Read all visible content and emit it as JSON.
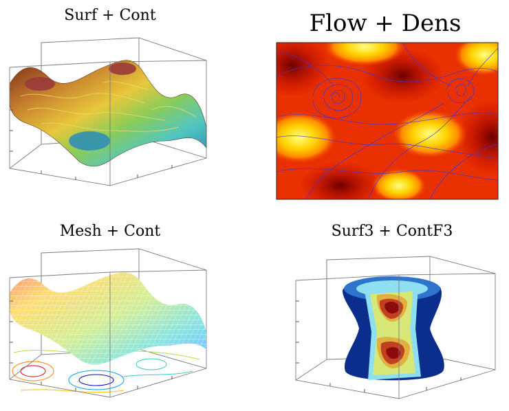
{
  "figure": {
    "panels": [
      {
        "title": "Surf + Cont"
      },
      {
        "title": "Flow + Dens"
      },
      {
        "title": "Mesh + Cont"
      },
      {
        "title": "Surf3 + ContF3"
      }
    ]
  },
  "chart_data": [
    {
      "type": "surface",
      "title": "Surf + Cont",
      "xlabel": "",
      "ylabel": "",
      "grid": false,
      "layers": [
        "surface",
        "contour lines"
      ],
      "colormap": [
        "#7a2a18",
        "#c8822e",
        "#e8c83c",
        "#8ccc58",
        "#4fc6c2",
        "#2b7fa6"
      ]
    },
    {
      "type": "heatmap",
      "title": "Flow + Dens",
      "xlabel": "",
      "ylabel": "",
      "grid": false,
      "layers": [
        "density",
        "flow lines"
      ],
      "colormap": [
        "#7d0000",
        "#c40000",
        "#f03c00",
        "#ff8c00",
        "#ffd200",
        "#ffff82"
      ],
      "flow_color": "#3a3ae0"
    },
    {
      "type": "surface",
      "title": "Mesh + Cont",
      "xlabel": "",
      "ylabel": "",
      "grid": false,
      "layers": [
        "mesh",
        "contour lines"
      ],
      "colormap": [
        "#0000c8",
        "#00a0ff",
        "#30d0c0",
        "#b0e040",
        "#ffc000",
        "#e00000"
      ]
    },
    {
      "type": "surface",
      "title": "Surf3 + ContF3",
      "xlabel": "",
      "ylabel": "",
      "grid": false,
      "layers": [
        "isosurface",
        "filled contours"
      ],
      "colormap": [
        "#0b2d8c",
        "#2c74cc",
        "#8ee0f0",
        "#d8e878",
        "#e0b040",
        "#c04020",
        "#8c0a0a"
      ]
    }
  ]
}
